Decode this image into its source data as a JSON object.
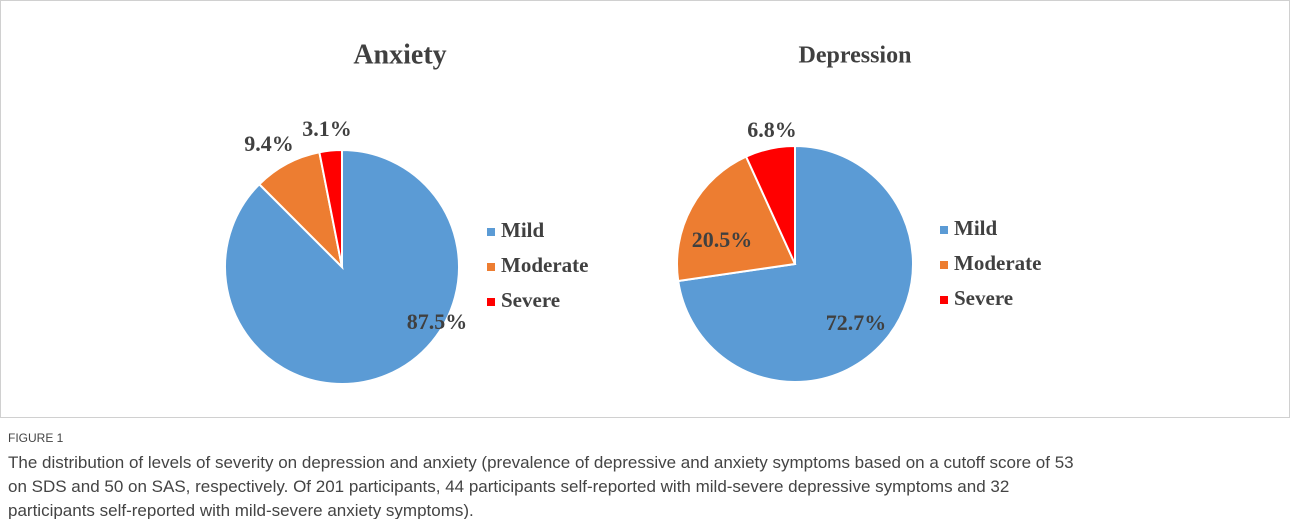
{
  "chart_data": [
    {
      "type": "pie",
      "title": "Anxiety",
      "categories": [
        "Mild",
        "Moderate",
        "Severe"
      ],
      "values": [
        87.5,
        9.4,
        3.1
      ],
      "value_labels": [
        "87.5%",
        "9.4%",
        "3.1%"
      ],
      "colors": [
        "#5b9bd5",
        "#ed7d31",
        "#ff0000"
      ],
      "legend": "right"
    },
    {
      "type": "pie",
      "title": "Depression",
      "categories": [
        "Mild",
        "Moderate",
        "Severe"
      ],
      "values": [
        72.7,
        20.5,
        6.8
      ],
      "value_labels": [
        "72.7%",
        "20.5%",
        "6.8%"
      ],
      "colors": [
        "#5b9bd5",
        "#ed7d31",
        "#ff0000"
      ],
      "legend": "right"
    }
  ],
  "figure": {
    "label": "FIGURE 1",
    "caption": [
      "The distribution of levels of severity on depression and anxiety (prevalence of depressive and anxiety symptoms based on a cutoff score of 53",
      "on SDS and 50 on SAS, respectively. Of 201 participants, 44 participants self-reported with mild-severe depressive symptoms and 32",
      "participants self-reported with mild-severe anxiety symptoms)."
    ]
  }
}
